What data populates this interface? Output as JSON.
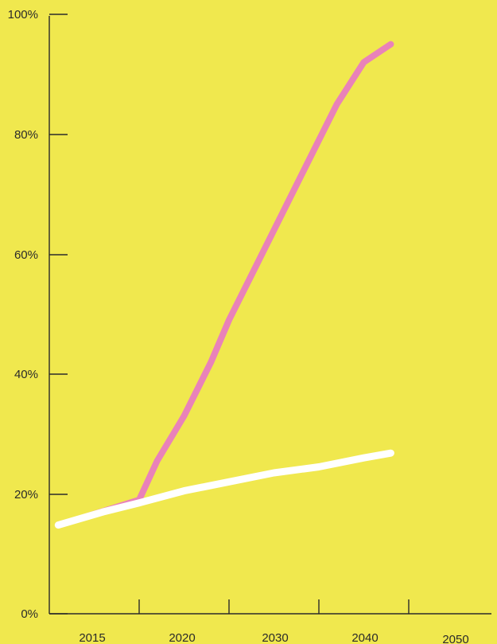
{
  "chart_data": {
    "type": "line",
    "title": "",
    "xlabel": "",
    "ylabel": "",
    "x_ticks": [
      "2015",
      "2020",
      "2030",
      "2040",
      "2050"
    ],
    "y_ticks": [
      "0%",
      "20%",
      "40%",
      "60%",
      "80%",
      "100%"
    ],
    "ylim": [
      0,
      100
    ],
    "grid": false,
    "legend": "none",
    "series": [
      {
        "color": "#E982B9",
        "values": [
          {
            "x": "2016.3",
            "y": 15.5
          },
          {
            "x": "2020",
            "y": 19
          },
          {
            "x": "2022",
            "y": 25.5
          },
          {
            "x": "2025",
            "y": 33
          },
          {
            "x": "2028",
            "y": 42
          },
          {
            "x": "2030",
            "y": 49
          },
          {
            "x": "2033",
            "y": 58
          },
          {
            "x": "2036",
            "y": 67
          },
          {
            "x": "2039",
            "y": 76
          },
          {
            "x": "2042",
            "y": 85
          },
          {
            "x": "2045",
            "y": 92
          },
          {
            "x": "2048",
            "y": 95
          }
        ]
      },
      {
        "color": "#FFFFFF",
        "values": [
          {
            "x": "2015.5",
            "y": 14.8
          },
          {
            "x": "2018",
            "y": 17
          },
          {
            "x": "2020",
            "y": 18.5
          },
          {
            "x": "2025",
            "y": 20.5
          },
          {
            "x": "2030",
            "y": 22
          },
          {
            "x": "2035",
            "y": 23.5
          },
          {
            "x": "2040",
            "y": 24.5
          },
          {
            "x": "2045",
            "y": 26
          },
          {
            "x": "2048",
            "y": 26.8
          }
        ]
      }
    ]
  },
  "colors": {
    "background": "#F0E84E",
    "axis": "#2a2a2a"
  }
}
